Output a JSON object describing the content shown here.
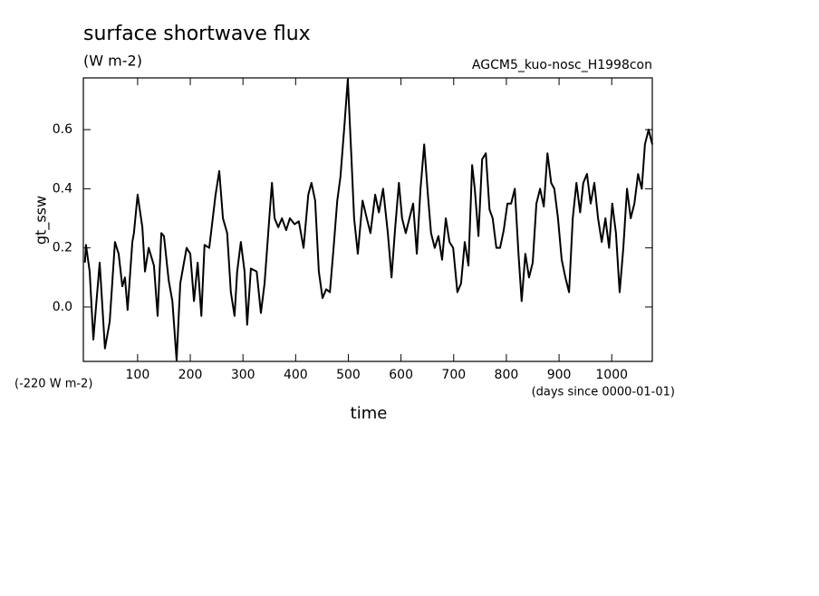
{
  "chart_data": {
    "type": "line",
    "title": "surface shortwave flux",
    "subtitle": "(W m-2)",
    "annotation_right": "AGCM5_kuo-nosc_H1998con",
    "y_offset_note": "(-220 W m-2)",
    "x_units_note": "(days since 0000-01-01)",
    "xlabel": "time",
    "ylabel": "gt_ssw",
    "xlim": [
      -3,
      1077
    ],
    "ylim": [
      -0.184,
      0.775
    ],
    "xticks": [
      100,
      200,
      300,
      400,
      500,
      600,
      700,
      800,
      900,
      1000
    ],
    "yticks": [
      {
        "value": 0,
        "label": "0.0"
      },
      0.2,
      0.4,
      0.6
    ],
    "color": "#000000",
    "x": [
      0,
      2,
      9,
      16,
      21,
      28,
      38,
      47,
      57,
      64,
      71,
      76,
      81,
      90,
      93,
      100,
      109,
      114,
      121,
      131,
      138,
      145,
      150,
      159,
      166,
      174,
      181,
      193,
      200,
      207,
      214,
      221,
      227,
      236,
      248,
      255,
      262,
      270,
      277,
      284,
      289,
      296,
      303,
      308,
      315,
      326,
      334,
      341,
      350,
      355,
      360,
      367,
      374,
      382,
      389,
      398,
      406,
      415,
      424,
      430,
      437,
      444,
      451,
      458,
      465,
      472,
      479,
      485,
      492,
      499,
      506,
      511,
      518,
      527,
      535,
      542,
      551,
      558,
      566,
      575,
      582,
      589,
      596,
      602,
      609,
      616,
      623,
      630,
      637,
      644,
      651,
      657,
      664,
      671,
      678,
      685,
      692,
      699,
      707,
      714,
      721,
      728,
      735,
      740,
      747,
      754,
      761,
      768,
      774,
      781,
      788,
      795,
      802,
      809,
      816,
      823,
      829,
      836,
      843,
      850,
      857,
      864,
      871,
      878,
      885,
      891,
      898,
      905,
      912,
      919,
      926,
      933,
      940,
      946,
      953,
      960,
      967,
      974,
      981,
      988,
      995,
      1001,
      1008,
      1015,
      1022,
      1029,
      1036,
      1043,
      1050,
      1057,
      1063,
      1070,
      1077
    ],
    "values": [
      0.15,
      0.21,
      0.12,
      -0.11,
      0.0,
      0.15,
      -0.14,
      -0.05,
      0.22,
      0.18,
      0.07,
      0.1,
      -0.01,
      0.22,
      0.25,
      0.38,
      0.27,
      0.12,
      0.2,
      0.14,
      -0.03,
      0.25,
      0.24,
      0.09,
      0.02,
      -0.18,
      0.08,
      0.2,
      0.18,
      0.02,
      0.15,
      -0.03,
      0.21,
      0.2,
      0.38,
      0.46,
      0.3,
      0.25,
      0.05,
      -0.03,
      0.12,
      0.22,
      0.12,
      -0.06,
      0.13,
      0.12,
      -0.02,
      0.08,
      0.3,
      0.42,
      0.3,
      0.27,
      0.3,
      0.26,
      0.3,
      0.28,
      0.29,
      0.2,
      0.38,
      0.42,
      0.36,
      0.12,
      0.03,
      0.06,
      0.05,
      0.2,
      0.36,
      0.44,
      0.6,
      0.77,
      0.5,
      0.3,
      0.18,
      0.36,
      0.3,
      0.25,
      0.38,
      0.32,
      0.4,
      0.25,
      0.1,
      0.27,
      0.42,
      0.3,
      0.25,
      0.3,
      0.35,
      0.18,
      0.4,
      0.55,
      0.38,
      0.25,
      0.2,
      0.24,
      0.16,
      0.3,
      0.22,
      0.2,
      0.05,
      0.08,
      0.22,
      0.14,
      0.48,
      0.4,
      0.24,
      0.5,
      0.52,
      0.33,
      0.3,
      0.2,
      0.2,
      0.26,
      0.35,
      0.35,
      0.4,
      0.18,
      0.02,
      0.18,
      0.1,
      0.15,
      0.35,
      0.4,
      0.34,
      0.52,
      0.42,
      0.4,
      0.3,
      0.16,
      0.1,
      0.05,
      0.3,
      0.42,
      0.32,
      0.42,
      0.45,
      0.35,
      0.42,
      0.3,
      0.22,
      0.3,
      0.2,
      0.35,
      0.25,
      0.05,
      0.2,
      0.4,
      0.3,
      0.35,
      0.45,
      0.4,
      0.55,
      0.6,
      0.55
    ]
  }
}
